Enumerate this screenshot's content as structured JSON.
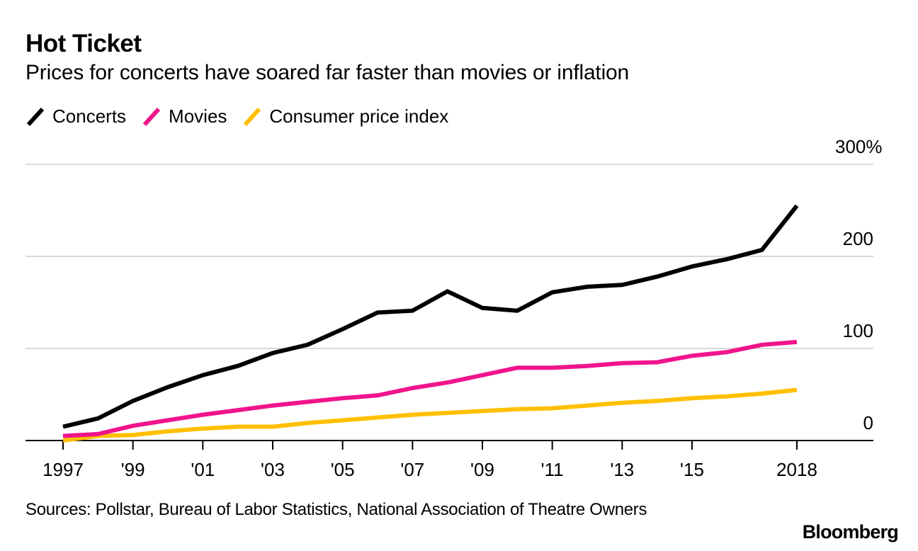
{
  "header": {
    "title": "Hot Ticket",
    "subtitle": "Prices for concerts have soared far faster than movies or inflation"
  },
  "legend": [
    {
      "label": "Concerts",
      "color": "#000000"
    },
    {
      "label": "Movies",
      "color": "#F0148C"
    },
    {
      "label": "Consumer price index",
      "color": "#FFC000"
    }
  ],
  "footer": {
    "sources": "Sources: Pollstar, Bureau of Labor Statistics, National Association of Theatre Owners",
    "brand": "Bloomberg"
  },
  "chart_data": {
    "type": "line",
    "title": "Hot Ticket",
    "subtitle": "Prices for concerts have soared far faster than movies or inflation",
    "xlabel": "",
    "ylabel": "",
    "x": [
      1997,
      1998,
      1999,
      2000,
      2001,
      2002,
      2003,
      2004,
      2005,
      2006,
      2007,
      2008,
      2009,
      2010,
      2011,
      2012,
      2013,
      2014,
      2015,
      2016,
      2017,
      2018
    ],
    "xlim": [
      1997,
      2018
    ],
    "x_ticks": [
      {
        "value": 1997,
        "label": "1997"
      },
      {
        "value": 1999,
        "label": "'99"
      },
      {
        "value": 2001,
        "label": "'01"
      },
      {
        "value": 2003,
        "label": "'03"
      },
      {
        "value": 2005,
        "label": "'05"
      },
      {
        "value": 2007,
        "label": "'07"
      },
      {
        "value": 2009,
        "label": "'09"
      },
      {
        "value": 2011,
        "label": "'11"
      },
      {
        "value": 2013,
        "label": "'13"
      },
      {
        "value": 2015,
        "label": "'15"
      },
      {
        "value": 2018,
        "label": "2018"
      }
    ],
    "ylim": [
      0,
      300
    ],
    "y_ticks": [
      {
        "value": 0,
        "label": "0"
      },
      {
        "value": 100,
        "label": "100"
      },
      {
        "value": 200,
        "label": "200"
      },
      {
        "value": 300,
        "label": "300%"
      }
    ],
    "y_axis_position": "right",
    "grid": true,
    "legend_position": "top-left",
    "series": [
      {
        "name": "Concerts",
        "color": "#000000",
        "values": [
          15,
          24,
          43,
          58,
          71,
          81,
          95,
          104,
          121,
          139,
          141,
          162,
          144,
          141,
          161,
          167,
          169,
          178,
          189,
          197,
          207,
          255
        ]
      },
      {
        "name": "Movies",
        "color": "#F0148C",
        "values": [
          5,
          7,
          16,
          22,
          28,
          33,
          38,
          42,
          46,
          49,
          57,
          63,
          71,
          79,
          79,
          81,
          84,
          85,
          92,
          96,
          104,
          107
        ]
      },
      {
        "name": "Consumer price index",
        "color": "#FFC000",
        "values": [
          0,
          5,
          6,
          10,
          13,
          15,
          15,
          19,
          22,
          25,
          28,
          30,
          32,
          34,
          35,
          38,
          41,
          43,
          46,
          48,
          51,
          55
        ]
      }
    ]
  }
}
